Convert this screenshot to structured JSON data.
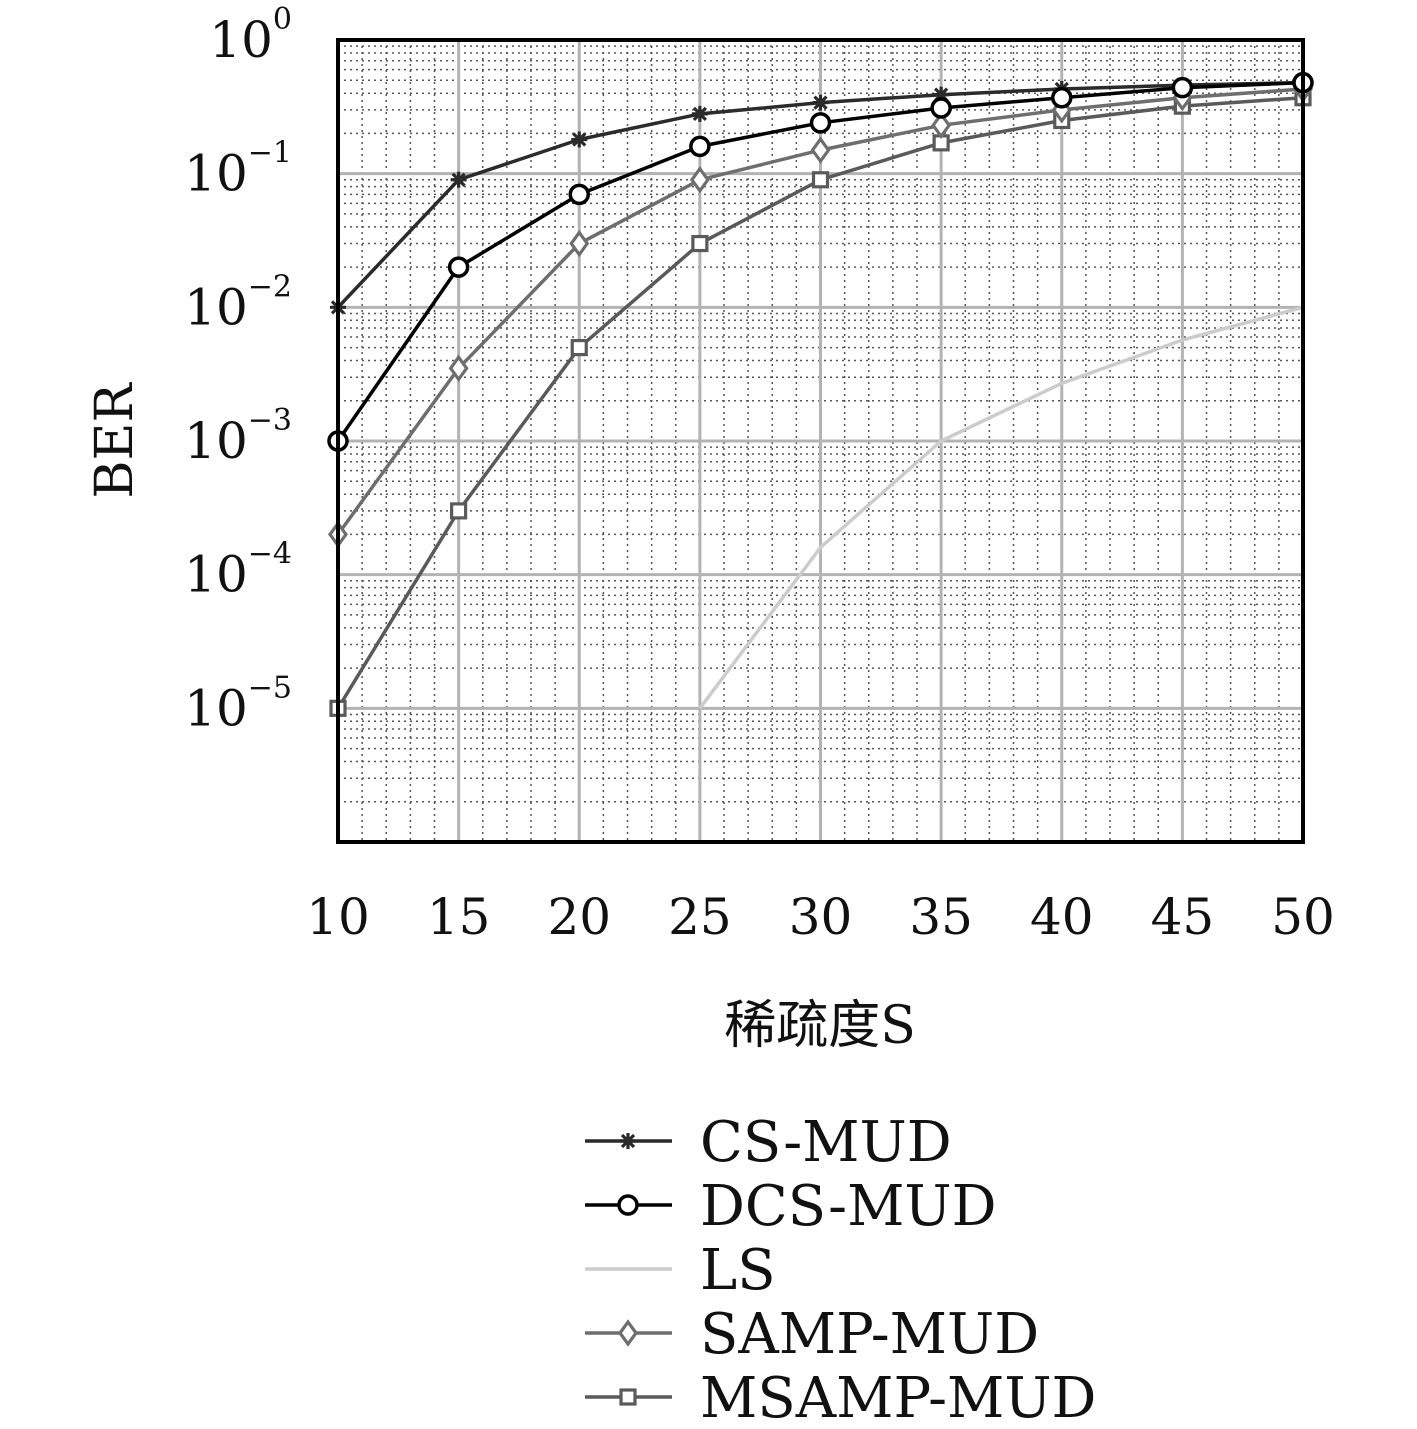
{
  "chart_data": {
    "type": "line",
    "title": "",
    "xlabel": "稀疏度S",
    "ylabel": "BER",
    "y_scale": "log",
    "xlim": [
      10,
      50
    ],
    "ylim": [
      1e-06,
      1
    ],
    "grid": true,
    "legend_position": "below",
    "x_ticks": [
      "10",
      "15",
      "20",
      "25",
      "30",
      "35",
      "40",
      "45",
      "50"
    ],
    "y_ticks": [
      {
        "value": 1,
        "base": "10",
        "exp": "0"
      },
      {
        "value": 0.1,
        "base": "10",
        "exp": "−1"
      },
      {
        "value": 0.01,
        "base": "10",
        "exp": "−2"
      },
      {
        "value": 0.001,
        "base": "10",
        "exp": "−3"
      },
      {
        "value": 0.0001,
        "base": "10",
        "exp": "−4"
      },
      {
        "value": 1e-05,
        "base": "10",
        "exp": "−5"
      }
    ],
    "series": [
      {
        "name": "CS-MUD",
        "marker": "asterisk",
        "color": "#2b2b2b",
        "x": [
          10,
          15,
          20,
          25,
          30,
          35,
          40,
          45,
          50
        ],
        "y": [
          0.01,
          0.09,
          0.18,
          0.28,
          0.34,
          0.39,
          0.43,
          0.46,
          0.48
        ]
      },
      {
        "name": "DCS-MUD",
        "marker": "circle",
        "color": "#000000",
        "x": [
          10,
          15,
          20,
          25,
          30,
          35,
          40,
          45,
          50
        ],
        "y": [
          0.001,
          0.02,
          0.07,
          0.16,
          0.24,
          0.31,
          0.37,
          0.44,
          0.48
        ]
      },
      {
        "name": "LS",
        "marker": "none",
        "color": "#cccccc",
        "x": [
          25,
          30,
          35,
          40,
          45,
          50
        ],
        "y": [
          1e-05,
          0.00016,
          0.001,
          0.0027,
          0.0057,
          0.01
        ]
      },
      {
        "name": "SAMP-MUD",
        "marker": "diamond",
        "color": "#6e6e6e",
        "x": [
          10,
          15,
          20,
          25,
          30,
          35,
          40,
          45,
          50
        ],
        "y": [
          0.0002,
          0.0035,
          0.03,
          0.09,
          0.15,
          0.23,
          0.3,
          0.37,
          0.43
        ]
      },
      {
        "name": "MSAMP-MUD",
        "marker": "square",
        "color": "#5a5a5a",
        "x": [
          10,
          15,
          20,
          25,
          30,
          35,
          40,
          45,
          50
        ],
        "y": [
          1e-05,
          0.0003,
          0.005,
          0.03,
          0.09,
          0.17,
          0.25,
          0.32,
          0.37
        ]
      }
    ]
  }
}
